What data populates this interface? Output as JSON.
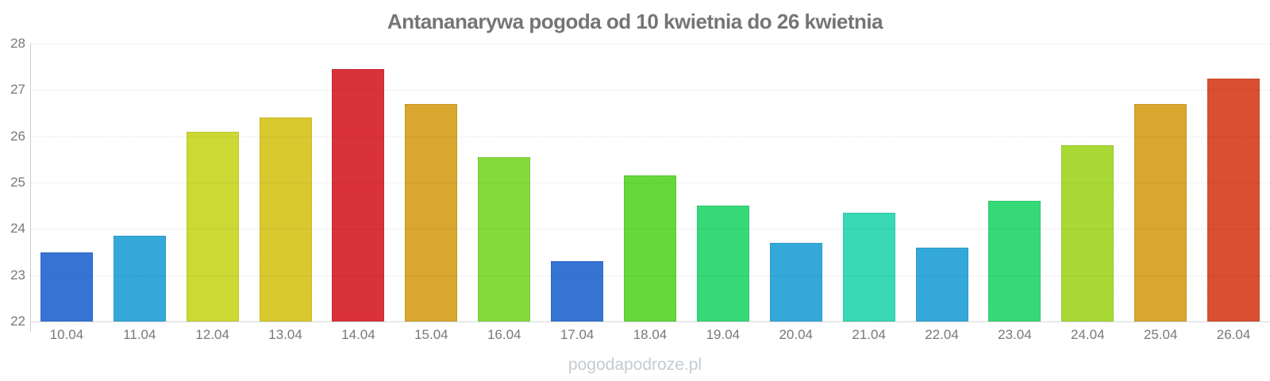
{
  "title": "Antananarywa pogoda od 10 kwietnia do 26 kwietnia",
  "watermark": "pogodapodroze.pl",
  "chart_data": {
    "type": "bar",
    "title": "Antananarywa pogoda od 10 kwietnia do 26 kwietnia",
    "xlabel": "",
    "ylabel": "",
    "ylim": [
      22,
      28
    ],
    "yticks": [
      22,
      23,
      24,
      25,
      26,
      27,
      28
    ],
    "grid": "horizontal-dotted",
    "legend": "none",
    "categories": [
      "10.04",
      "11.04",
      "12.04",
      "13.04",
      "14.04",
      "15.04",
      "16.04",
      "17.04",
      "18.04",
      "19.04",
      "20.04",
      "21.04",
      "22.04",
      "23.04",
      "24.04",
      "25.04",
      "26.04"
    ],
    "values": [
      23.5,
      23.85,
      26.1,
      26.4,
      27.45,
      26.7,
      25.55,
      23.3,
      25.15,
      24.5,
      23.7,
      24.35,
      23.6,
      24.6,
      25.8,
      26.7,
      27.25
    ],
    "bar_colors": [
      "#3674d4",
      "#35a8da",
      "#ccd934",
      "#d9c92f",
      "#d93238",
      "#d9a62e",
      "#84da3c",
      "#3674d4",
      "#66d839",
      "#36d978",
      "#35a8da",
      "#38d9b4",
      "#35a8da",
      "#36d978",
      "#a8d934",
      "#d9a62e",
      "#d94f30"
    ],
    "axis_color": "#c9ced1",
    "label_color": "#76797c",
    "title_color": "#757575"
  }
}
